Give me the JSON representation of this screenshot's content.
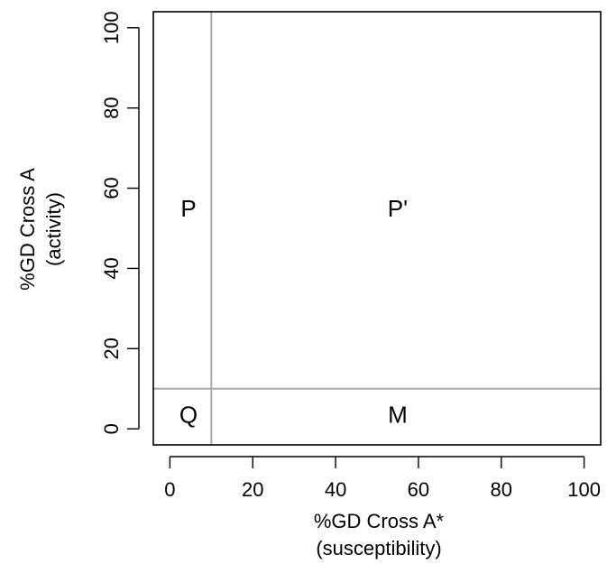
{
  "chart_data": {
    "type": "scatter",
    "xlabel": "%GD Cross A*",
    "xlabel_sub": "(susceptibility)",
    "ylabel": "%GD Cross A",
    "ylabel_sub": "(activity)",
    "xlim": [
      -4,
      104
    ],
    "ylim": [
      -4,
      104
    ],
    "x_ticks": [
      0,
      20,
      40,
      60,
      80,
      100
    ],
    "y_ticks": [
      0,
      20,
      40,
      60,
      80,
      100
    ],
    "grid": false,
    "threshold_lines": [
      {
        "orientation": "vertical",
        "x": 10,
        "color": "#aaaaaa"
      },
      {
        "orientation": "horizontal",
        "y": 10,
        "color": "#aaaaaa"
      }
    ],
    "regions": [
      {
        "label": "P",
        "x": 4.5,
        "y": 55
      },
      {
        "label": "P'",
        "x": 55,
        "y": 55
      },
      {
        "label": "Q",
        "x": 4.5,
        "y": 3.5
      },
      {
        "label": "M",
        "x": 55,
        "y": 3.5
      }
    ]
  }
}
